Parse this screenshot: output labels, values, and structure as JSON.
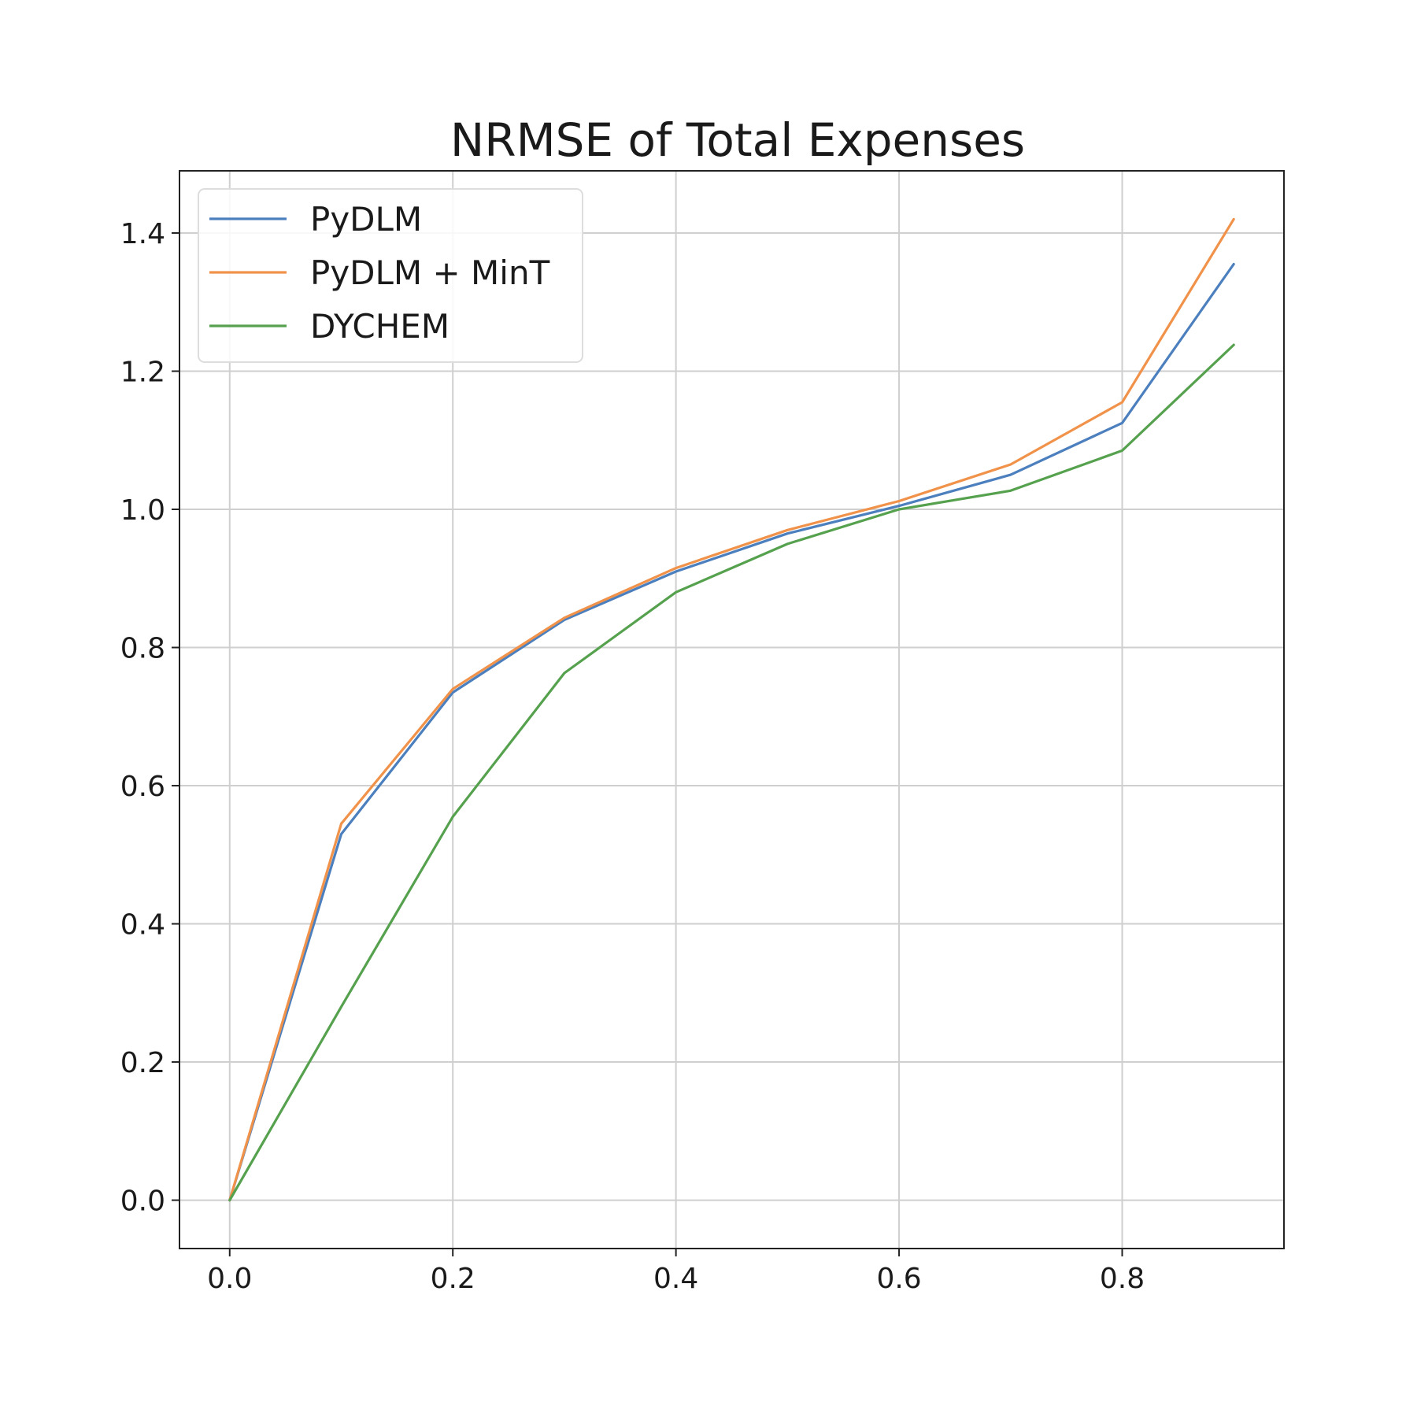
{
  "chart_data": {
    "type": "line",
    "title": "NRMSE of Total Expenses",
    "xlabel": "",
    "ylabel": "",
    "x": [
      0.0,
      0.1,
      0.2,
      0.3,
      0.4,
      0.5,
      0.6,
      0.7,
      0.8,
      0.9
    ],
    "xlim": [
      -0.045,
      0.945
    ],
    "ylim": [
      -0.07,
      1.49
    ],
    "xticks": [
      "0.0",
      "0.2",
      "0.4",
      "0.6",
      "0.8"
    ],
    "yticks": [
      "0.0",
      "0.2",
      "0.4",
      "0.6",
      "0.8",
      "1.0",
      "1.2",
      "1.4"
    ],
    "grid": true,
    "legend_position": "upper-left",
    "series": [
      {
        "name": "PyDLM",
        "color": "#4c7fbd",
        "values": [
          0.0,
          0.53,
          0.735,
          0.84,
          0.91,
          0.965,
          1.005,
          1.05,
          1.125,
          1.355
        ]
      },
      {
        "name": "PyDLM + MinT",
        "color": "#f0924a",
        "values": [
          0.0,
          0.545,
          0.74,
          0.843,
          0.915,
          0.97,
          1.012,
          1.065,
          1.155,
          1.42
        ]
      },
      {
        "name": "DYCHEM",
        "color": "#55a14e",
        "values": [
          0.0,
          0.28,
          0.555,
          0.763,
          0.88,
          0.95,
          1.0,
          1.027,
          1.085,
          1.238
        ]
      }
    ]
  }
}
